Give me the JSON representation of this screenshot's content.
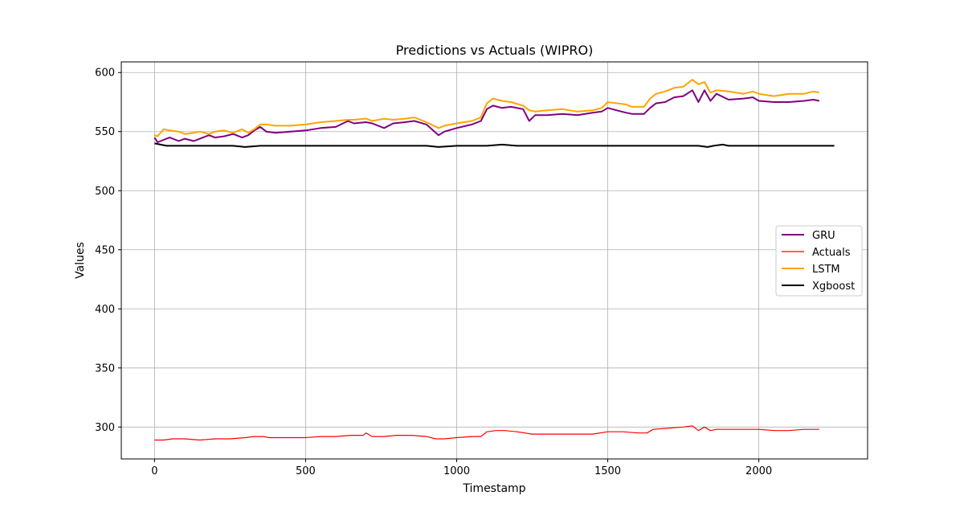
{
  "chart_data": {
    "type": "line",
    "title": "Predictions vs Actuals (WIPRO)",
    "xlabel": "Timestamp",
    "ylabel": "Values",
    "xlim": [
      -110,
      2360
    ],
    "ylim": [
      273,
      609
    ],
    "xticks": [
      0,
      500,
      1000,
      1500,
      2000
    ],
    "yticks": [
      300,
      350,
      400,
      450,
      500,
      550,
      600
    ],
    "grid": true,
    "legend_position": "center-right",
    "series": [
      {
        "name": "GRU",
        "color": "#800080",
        "x": [
          0,
          10,
          30,
          50,
          80,
          100,
          130,
          150,
          180,
          200,
          230,
          260,
          290,
          310,
          330,
          350,
          370,
          400,
          450,
          500,
          550,
          600,
          640,
          660,
          700,
          720,
          760,
          790,
          830,
          860,
          900,
          940,
          960,
          1000,
          1050,
          1080,
          1100,
          1120,
          1150,
          1180,
          1220,
          1240,
          1260,
          1300,
          1350,
          1400,
          1450,
          1480,
          1500,
          1530,
          1560,
          1580,
          1620,
          1640,
          1660,
          1690,
          1720,
          1750,
          1780,
          1800,
          1820,
          1840,
          1860,
          1900,
          1950,
          1980,
          2000,
          2050,
          2100,
          2150,
          2180,
          2200
        ],
        "values": [
          545,
          541,
          543,
          545,
          542,
          544,
          542,
          544,
          547,
          545,
          546,
          548,
          545,
          547,
          551,
          554,
          550,
          549,
          550,
          551,
          553,
          554,
          559,
          557,
          558,
          557,
          553,
          557,
          558,
          559,
          556,
          547,
          550,
          553,
          556,
          559,
          569,
          572,
          570,
          571,
          569,
          559,
          564,
          564,
          565,
          564,
          566,
          567,
          570,
          568,
          566,
          565,
          565,
          570,
          574,
          575,
          579,
          580,
          585,
          575,
          585,
          576,
          582,
          577,
          578,
          579,
          576,
          575,
          575,
          576,
          577,
          576
        ]
      },
      {
        "name": "Actuals",
        "color": "#ff0000",
        "x": [
          0,
          30,
          60,
          100,
          150,
          200,
          250,
          300,
          330,
          360,
          380,
          400,
          450,
          500,
          550,
          600,
          650,
          690,
          700,
          720,
          760,
          800,
          850,
          900,
          930,
          960,
          1000,
          1050,
          1080,
          1100,
          1130,
          1160,
          1200,
          1250,
          1300,
          1350,
          1400,
          1450,
          1500,
          1550,
          1600,
          1630,
          1650,
          1700,
          1750,
          1780,
          1800,
          1820,
          1840,
          1860,
          1900,
          1950,
          2000,
          2050,
          2100,
          2150,
          2200
        ],
        "values": [
          289,
          289,
          290,
          290,
          289,
          290,
          290,
          291,
          292,
          292,
          291,
          291,
          291,
          291,
          292,
          292,
          293,
          293,
          295,
          292,
          292,
          293,
          293,
          292,
          290,
          290,
          291,
          292,
          292,
          296,
          297,
          297,
          296,
          294,
          294,
          294,
          294,
          294,
          296,
          296,
          295,
          295,
          298,
          299,
          300,
          301,
          297,
          300,
          297,
          298,
          298,
          298,
          298,
          297,
          297,
          298,
          298
        ]
      },
      {
        "name": "LSTM",
        "color": "#ffa500",
        "x": [
          0,
          10,
          30,
          50,
          80,
          100,
          130,
          150,
          180,
          200,
          230,
          260,
          290,
          310,
          330,
          350,
          370,
          400,
          450,
          500,
          550,
          600,
          640,
          660,
          700,
          720,
          760,
          790,
          830,
          860,
          900,
          940,
          960,
          1000,
          1050,
          1080,
          1100,
          1120,
          1150,
          1180,
          1220,
          1240,
          1260,
          1300,
          1350,
          1400,
          1450,
          1480,
          1500,
          1530,
          1560,
          1580,
          1620,
          1640,
          1660,
          1690,
          1720,
          1750,
          1780,
          1800,
          1820,
          1840,
          1860,
          1900,
          1950,
          1980,
          2000,
          2050,
          2100,
          2150,
          2180,
          2200
        ],
        "values": [
          547,
          546,
          552,
          551,
          550,
          548,
          549,
          550,
          548,
          550,
          551,
          549,
          552,
          549,
          552,
          556,
          556,
          555,
          555,
          556,
          558,
          559,
          560,
          560,
          561,
          559,
          561,
          560,
          561,
          562,
          558,
          553,
          555,
          557,
          559,
          562,
          574,
          578,
          576,
          575,
          572,
          568,
          567,
          568,
          569,
          567,
          568,
          570,
          575,
          574,
          573,
          571,
          571,
          578,
          582,
          584,
          587,
          588,
          594,
          590,
          592,
          583,
          585,
          584,
          582,
          584,
          582,
          580,
          582,
          582,
          584,
          583
        ]
      },
      {
        "name": "Xgboost",
        "color": "#000000",
        "x": [
          0,
          20,
          40,
          80,
          120,
          160,
          200,
          260,
          300,
          350,
          400,
          450,
          500,
          550,
          600,
          650,
          700,
          750,
          800,
          850,
          900,
          940,
          1000,
          1050,
          1100,
          1150,
          1200,
          1250,
          1300,
          1350,
          1400,
          1450,
          1500,
          1550,
          1600,
          1650,
          1700,
          1750,
          1800,
          1830,
          1850,
          1880,
          1900,
          1950,
          2000,
          2050,
          2100,
          2150,
          2200,
          2250
        ],
        "values": [
          540,
          539,
          538,
          538,
          538,
          538,
          538,
          538,
          537,
          538,
          538,
          538,
          538,
          538,
          538,
          538,
          538,
          538,
          538,
          538,
          538,
          537,
          538,
          538,
          538,
          539,
          538,
          538,
          538,
          538,
          538,
          538,
          538,
          538,
          538,
          538,
          538,
          538,
          538,
          537,
          538,
          539,
          538,
          538,
          538,
          538,
          538,
          538,
          538,
          538
        ]
      }
    ]
  }
}
